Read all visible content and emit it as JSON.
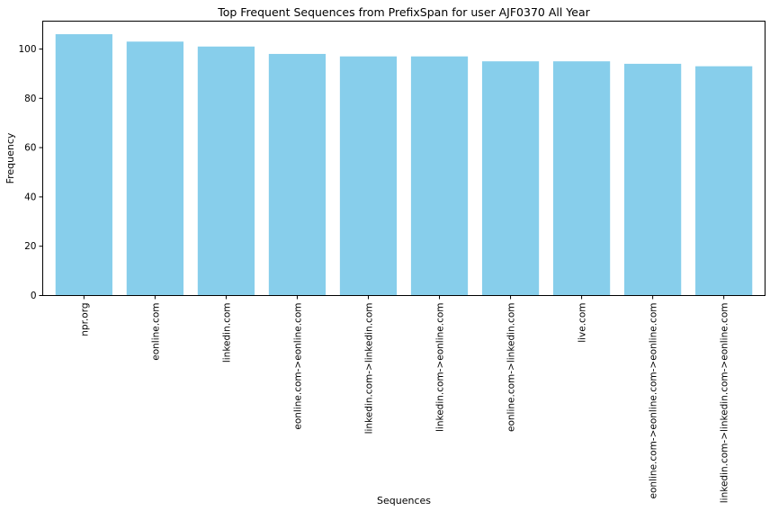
{
  "chart_data": {
    "type": "bar",
    "title": "Top Frequent Sequences from PrefixSpan for user AJF0370 All Year",
    "xlabel": "Sequences",
    "ylabel": "Frequency",
    "categories": [
      "npr.org",
      "eonline.com",
      "linkedin.com",
      "eonline.com->eonline.com",
      "linkedin.com->linkedin.com",
      "linkedin.com->eonline.com",
      "eonline.com->linkedin.com",
      "live.com",
      "eonline.com->eonline.com->eonline.com",
      "linkedin.com->linkedin.com->eonline.com"
    ],
    "values": [
      106,
      103,
      101,
      98,
      97,
      97,
      95,
      95,
      94,
      93
    ],
    "ylim": [
      0,
      111.3
    ],
    "yticks": [
      0,
      20,
      40,
      60,
      80,
      100
    ],
    "bar_color": "#87ceeb",
    "grid": false,
    "legend": "none"
  }
}
